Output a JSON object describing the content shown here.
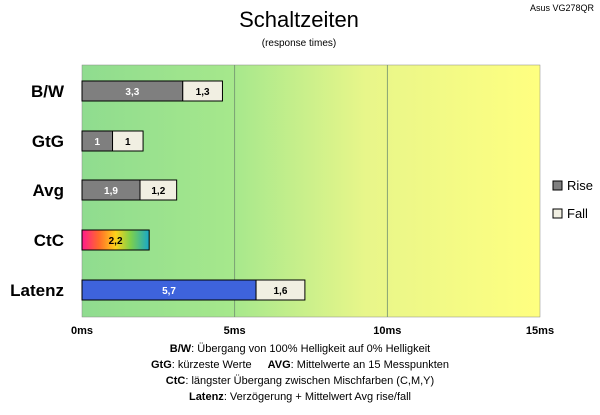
{
  "model": "Asus VG278QR",
  "colors": {
    "rise": "#7f7f7f",
    "fall": "#f1efe2",
    "latency": "#3e63dc",
    "grid": "#6f8f6f",
    "bg_green": "#8fdc8f",
    "bg_yellow": "#ffff80"
  },
  "chart_data": {
    "type": "bar",
    "orientation": "horizontal",
    "stacked": true,
    "title": "Schaltzeiten",
    "subtitle": "(response times)",
    "unit": "ms",
    "xlim": [
      0,
      15
    ],
    "xticks": [
      "0ms",
      "5ms",
      "10ms",
      "15ms"
    ],
    "tick_values": [
      0,
      5,
      10,
      15
    ],
    "grid": true,
    "legend_position": "right",
    "categories": [
      "B/W",
      "GtG",
      "Avg",
      "CtC",
      "Latenz"
    ],
    "series": [
      {
        "name": "Rise",
        "values": [
          3.3,
          1,
          1.9,
          null,
          null
        ],
        "labels": [
          "3,3",
          "1",
          "1,9",
          "",
          ""
        ]
      },
      {
        "name": "Fall",
        "values": [
          1.3,
          1,
          1.2,
          null,
          1.6
        ],
        "labels": [
          "1,3",
          "1",
          "1,2",
          "",
          "1,6"
        ]
      }
    ],
    "ctc": {
      "value": 2.2,
      "label": "2,2"
    },
    "latency": {
      "value": 5.7,
      "label": "5,7"
    }
  },
  "notes": {
    "bw_key": "B/W",
    "bw_text": ": Übergang von 100% Helligkeit auf 0% Helligkeit",
    "gtg_key": "GtG",
    "gtg_text": ": kürzeste Werte",
    "avg_key": "AVG",
    "avg_text": ": Mittelwerte an 15 Messpunkten",
    "ctc_key": "CtC",
    "ctc_text": ": längster Übergang zwischen Mischfarben (C,M,Y)",
    "lat_key": "Latenz",
    "lat_text": ": Verzögerung + Mittelwert Avg rise/fall"
  }
}
